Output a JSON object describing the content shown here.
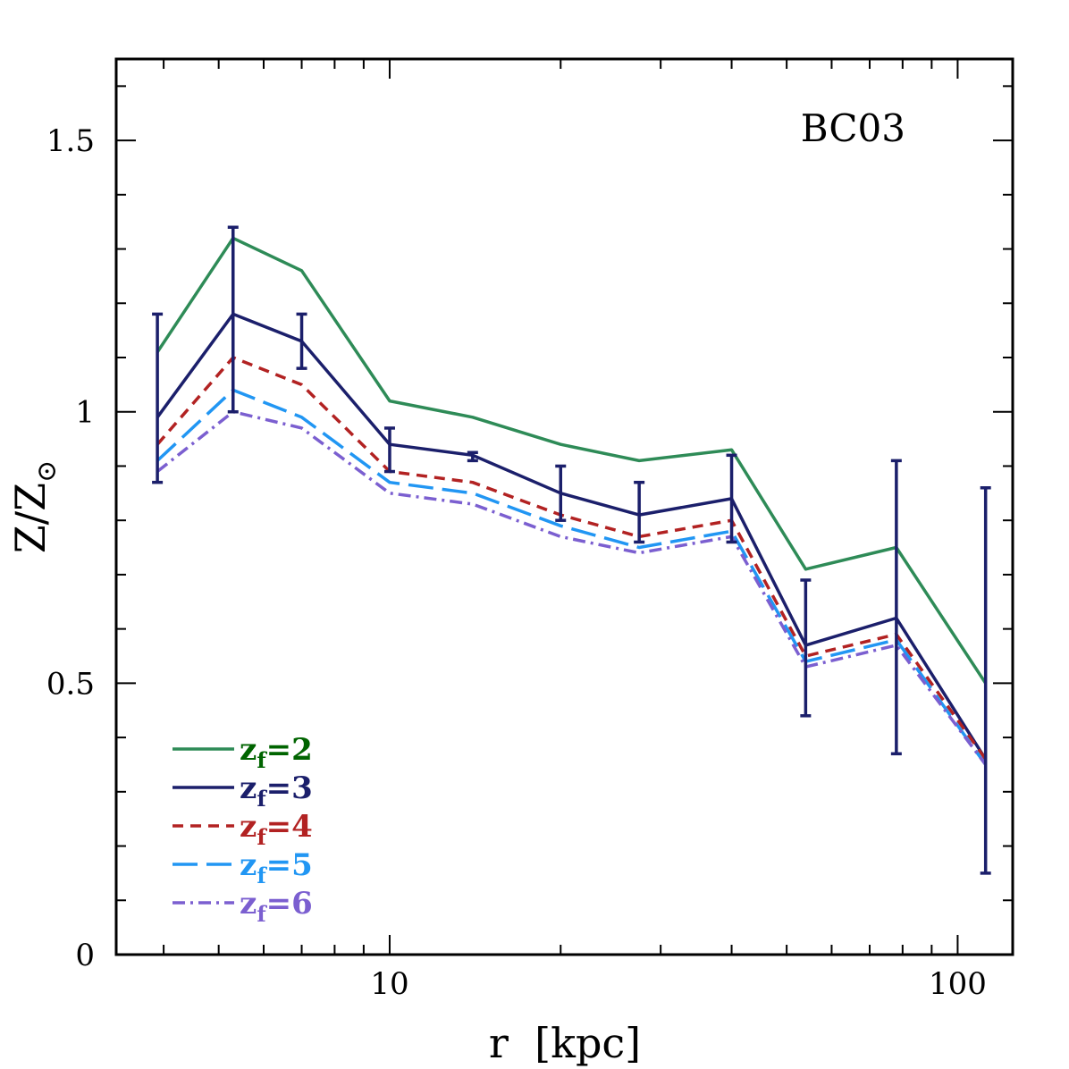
{
  "chart_data": {
    "type": "line",
    "title": "BC03",
    "xlabel": "r  [kpc]",
    "ylabel": "Z/Z",
    "ylabel_subscript": "⊙",
    "xscale": "log",
    "xlim": [
      3.3,
      125
    ],
    "ylim": [
      0,
      1.65
    ],
    "xticks": [
      {
        "value": 10,
        "label": "10"
      },
      {
        "value": 100,
        "label": "100"
      }
    ],
    "yticks": [
      {
        "value": 0,
        "label": "0"
      },
      {
        "value": 0.5,
        "label": "0.5"
      },
      {
        "value": 1,
        "label": "1"
      },
      {
        "value": 1.5,
        "label": "1.5"
      }
    ],
    "x": [
      3.9,
      5.3,
      7.0,
      10.0,
      14.0,
      20.0,
      27.5,
      40.0,
      54.0,
      78.0,
      112.0
    ],
    "series": [
      {
        "name": "zf=2",
        "label": "z",
        "sub": "f",
        "suffix": "=2",
        "color": "#2e8b57",
        "text_color": "#006400",
        "dash": "",
        "values": [
          1.11,
          1.32,
          1.26,
          1.02,
          0.99,
          0.94,
          0.91,
          0.93,
          0.71,
          0.75,
          0.5
        ]
      },
      {
        "name": "zf=3",
        "label": "z",
        "sub": "f",
        "suffix": "=3",
        "color": "#1b1f6b",
        "text_color": "#1b1f6b",
        "dash": "",
        "values": [
          0.99,
          1.18,
          1.13,
          0.94,
          0.92,
          0.85,
          0.81,
          0.84,
          0.57,
          0.62,
          0.36
        ]
      },
      {
        "name": "zf=4",
        "label": "z",
        "sub": "f",
        "suffix": "=4",
        "color": "#b22222",
        "text_color": "#b22222",
        "dash": "12,8",
        "values": [
          0.94,
          1.1,
          1.05,
          0.89,
          0.87,
          0.81,
          0.77,
          0.8,
          0.55,
          0.59,
          0.36
        ]
      },
      {
        "name": "zf=5",
        "label": "z",
        "sub": "f",
        "suffix": "=5",
        "color": "#2196f3",
        "text_color": "#2196f3",
        "dash": "28,10",
        "values": [
          0.91,
          1.04,
          0.99,
          0.87,
          0.85,
          0.79,
          0.75,
          0.78,
          0.54,
          0.58,
          0.35
        ]
      },
      {
        "name": "zf=6",
        "label": "z",
        "sub": "f",
        "suffix": "=6",
        "color": "#7b5fd0",
        "text_color": "#7b5fd0",
        "dash": "14,6,3,6",
        "values": [
          0.89,
          1.0,
          0.97,
          0.85,
          0.83,
          0.77,
          0.74,
          0.77,
          0.53,
          0.57,
          0.35
        ]
      }
    ],
    "error_bars": {
      "color": "#1b1f6b",
      "points": [
        {
          "x": 3.9,
          "low": 0.87,
          "high": 1.18
        },
        {
          "x": 5.3,
          "low": 1.0,
          "high": 1.34
        },
        {
          "x": 7.0,
          "low": 1.08,
          "high": 1.18
        },
        {
          "x": 10.0,
          "low": 0.89,
          "high": 0.97
        },
        {
          "x": 14.0,
          "low": 0.91,
          "high": 0.925
        },
        {
          "x": 20.0,
          "low": 0.8,
          "high": 0.9
        },
        {
          "x": 27.5,
          "low": 0.76,
          "high": 0.87
        },
        {
          "x": 40.0,
          "low": 0.76,
          "high": 0.92
        },
        {
          "x": 54.0,
          "low": 0.44,
          "high": 0.69
        },
        {
          "x": 78.0,
          "low": 0.37,
          "high": 0.91
        },
        {
          "x": 112.0,
          "low": 0.15,
          "high": 0.86
        }
      ]
    },
    "legend_position": "bottom-left"
  }
}
